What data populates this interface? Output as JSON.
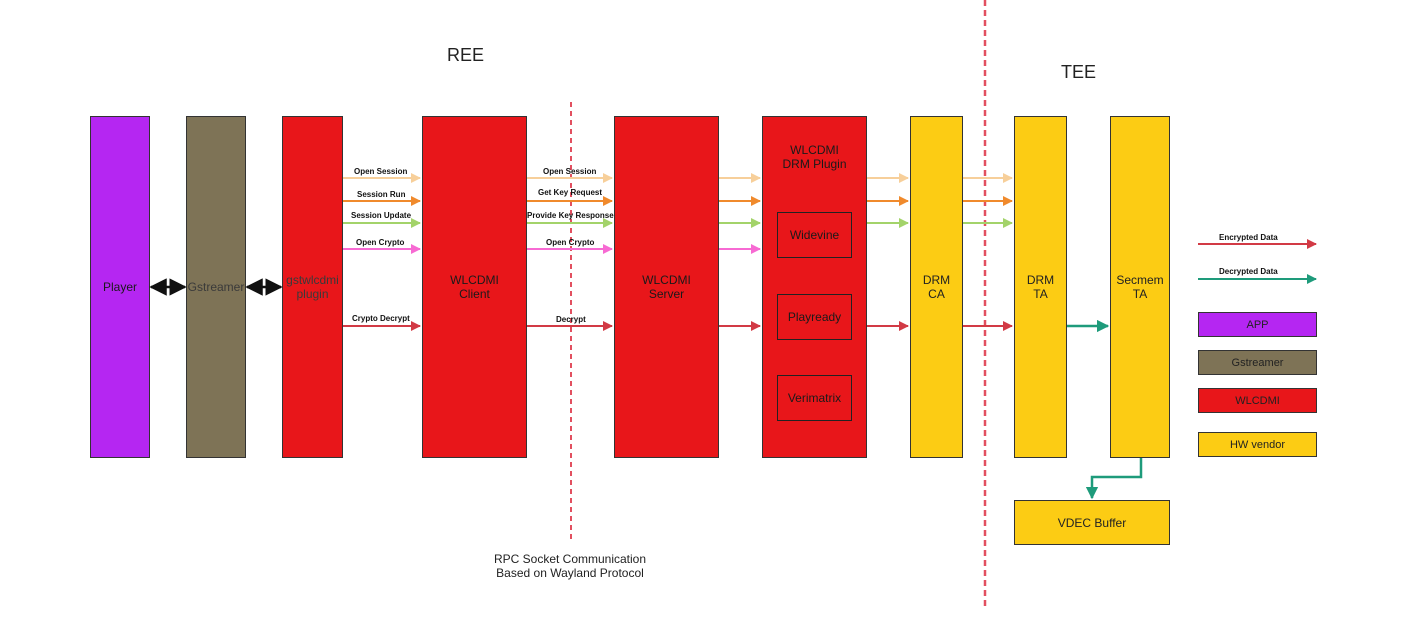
{
  "regions": {
    "ree": "REE",
    "tee": "TEE"
  },
  "blocks": {
    "player": "Player",
    "gstreamer": "Gstreamer",
    "gstwlcdmi": "gstwlcdmi\nplugin",
    "client": "WLCDMI\nClient",
    "server": "WLCDMI\nServer",
    "drm_plugin": "WLCDMI\nDRM Plugin",
    "drm_ca": "DRM\nCA",
    "drm_ta": "DRM\nTA",
    "secmem_ta": "Secmem\nTA",
    "vdec_buffer": "VDEC Buffer"
  },
  "plugins": [
    "Widevine",
    "Playready",
    "Verimatrix"
  ],
  "arrows_left": [
    "Open Session",
    "Session Run",
    "Session Update",
    "Open Crypto",
    "Crypto Decrypt"
  ],
  "arrows_mid": [
    "Open Session",
    "Get Key Request",
    "Provide Key Response",
    "Open Crypto",
    "Decrypt"
  ],
  "caption": "RPC Socket Communication\nBased on Wayland Protocol",
  "legend": {
    "encrypted": "Encrypted Data",
    "decrypted": "Decrypted Data",
    "app": "APP",
    "gstreamer": "Gstreamer",
    "wlcdmi": "WLCDMI",
    "hw_vendor": "HW  vendor"
  },
  "colors": {
    "app": "#b526f2",
    "gstreamer": "#7e7356",
    "wlcdmi": "#e8161a",
    "hw_vendor": "#fccc14",
    "open_session": "#f7cf9a",
    "session_run": "#f08a2c",
    "session_update": "#a3d36a",
    "open_crypto": "#f76ad3",
    "encrypted": "#d23a45",
    "decrypted": "#1e9b7b",
    "divider": "#e25060"
  }
}
